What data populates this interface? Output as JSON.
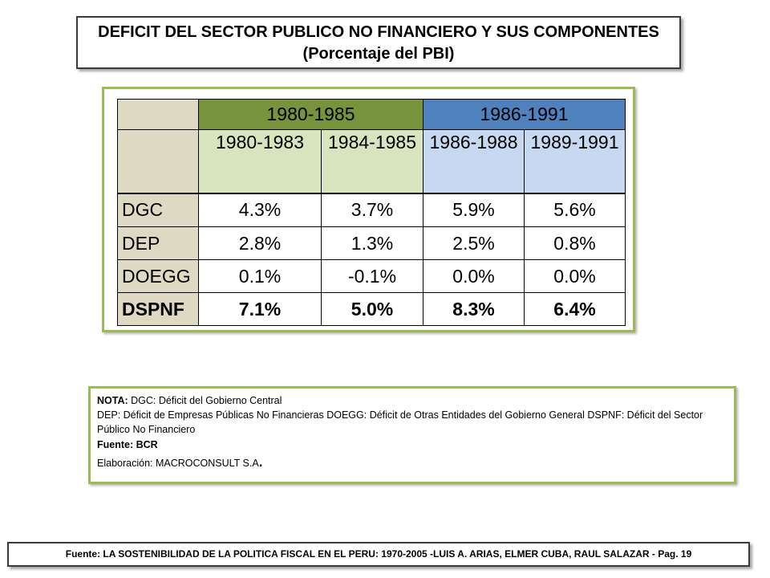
{
  "title": {
    "line1": "DEFICIT DEL SECTOR PUBLICO NO FINANCIERO Y SUS COMPONENTES",
    "line2": "(Porcentaje del PBI)"
  },
  "table": {
    "group_headers": [
      "1980-1985",
      "1986-1991"
    ],
    "sub_headers": [
      "1980-1983",
      "1984-1985",
      "1986-1988",
      "1989-1991"
    ],
    "rows": [
      {
        "label": "DGC",
        "values": [
          "4.3%",
          "3.7%",
          "5.9%",
          "5.6%"
        ]
      },
      {
        "label": "DEP",
        "values": [
          "2.8%",
          "1.3%",
          "2.5%",
          "0.8%"
        ]
      },
      {
        "label": "DOEGG",
        "values": [
          "0.1%",
          "-0.1%",
          "0.0%",
          "0.0%"
        ]
      },
      {
        "label": "DSPNF",
        "values": [
          "7.1%",
          "5.0%",
          "8.3%",
          "6.4%"
        ]
      }
    ]
  },
  "note": {
    "label": "NOTA:",
    "line1": "DGC: Déficit del Gobierno Central",
    "line2": "DEP: Déficit de Empresas Públicas No Financieras DOEGG: Déficit de Otras Entidades del Gobierno General DSPNF: Déficit del Sector Público No Financiero",
    "source": "Fuente: BCR",
    "elaboration": "Elaboración: MACROCONSULT S.A",
    "period": "."
  },
  "footer": "Fuente: LA SOSTENIBILIDAD DE LA POLITICA FISCAL EN EL PERU: 1970-2005 -LUIS A. ARIAS, ELMER CUBA, RAUL SALAZAR  -  Pag. 19",
  "colors": {
    "group1": "#77933c",
    "group2": "#4f81bd",
    "sub1": "#d7e4bd",
    "sub2": "#c6d9f1",
    "label_bg": "#ddd9c3",
    "frame": "#9bbb59"
  }
}
